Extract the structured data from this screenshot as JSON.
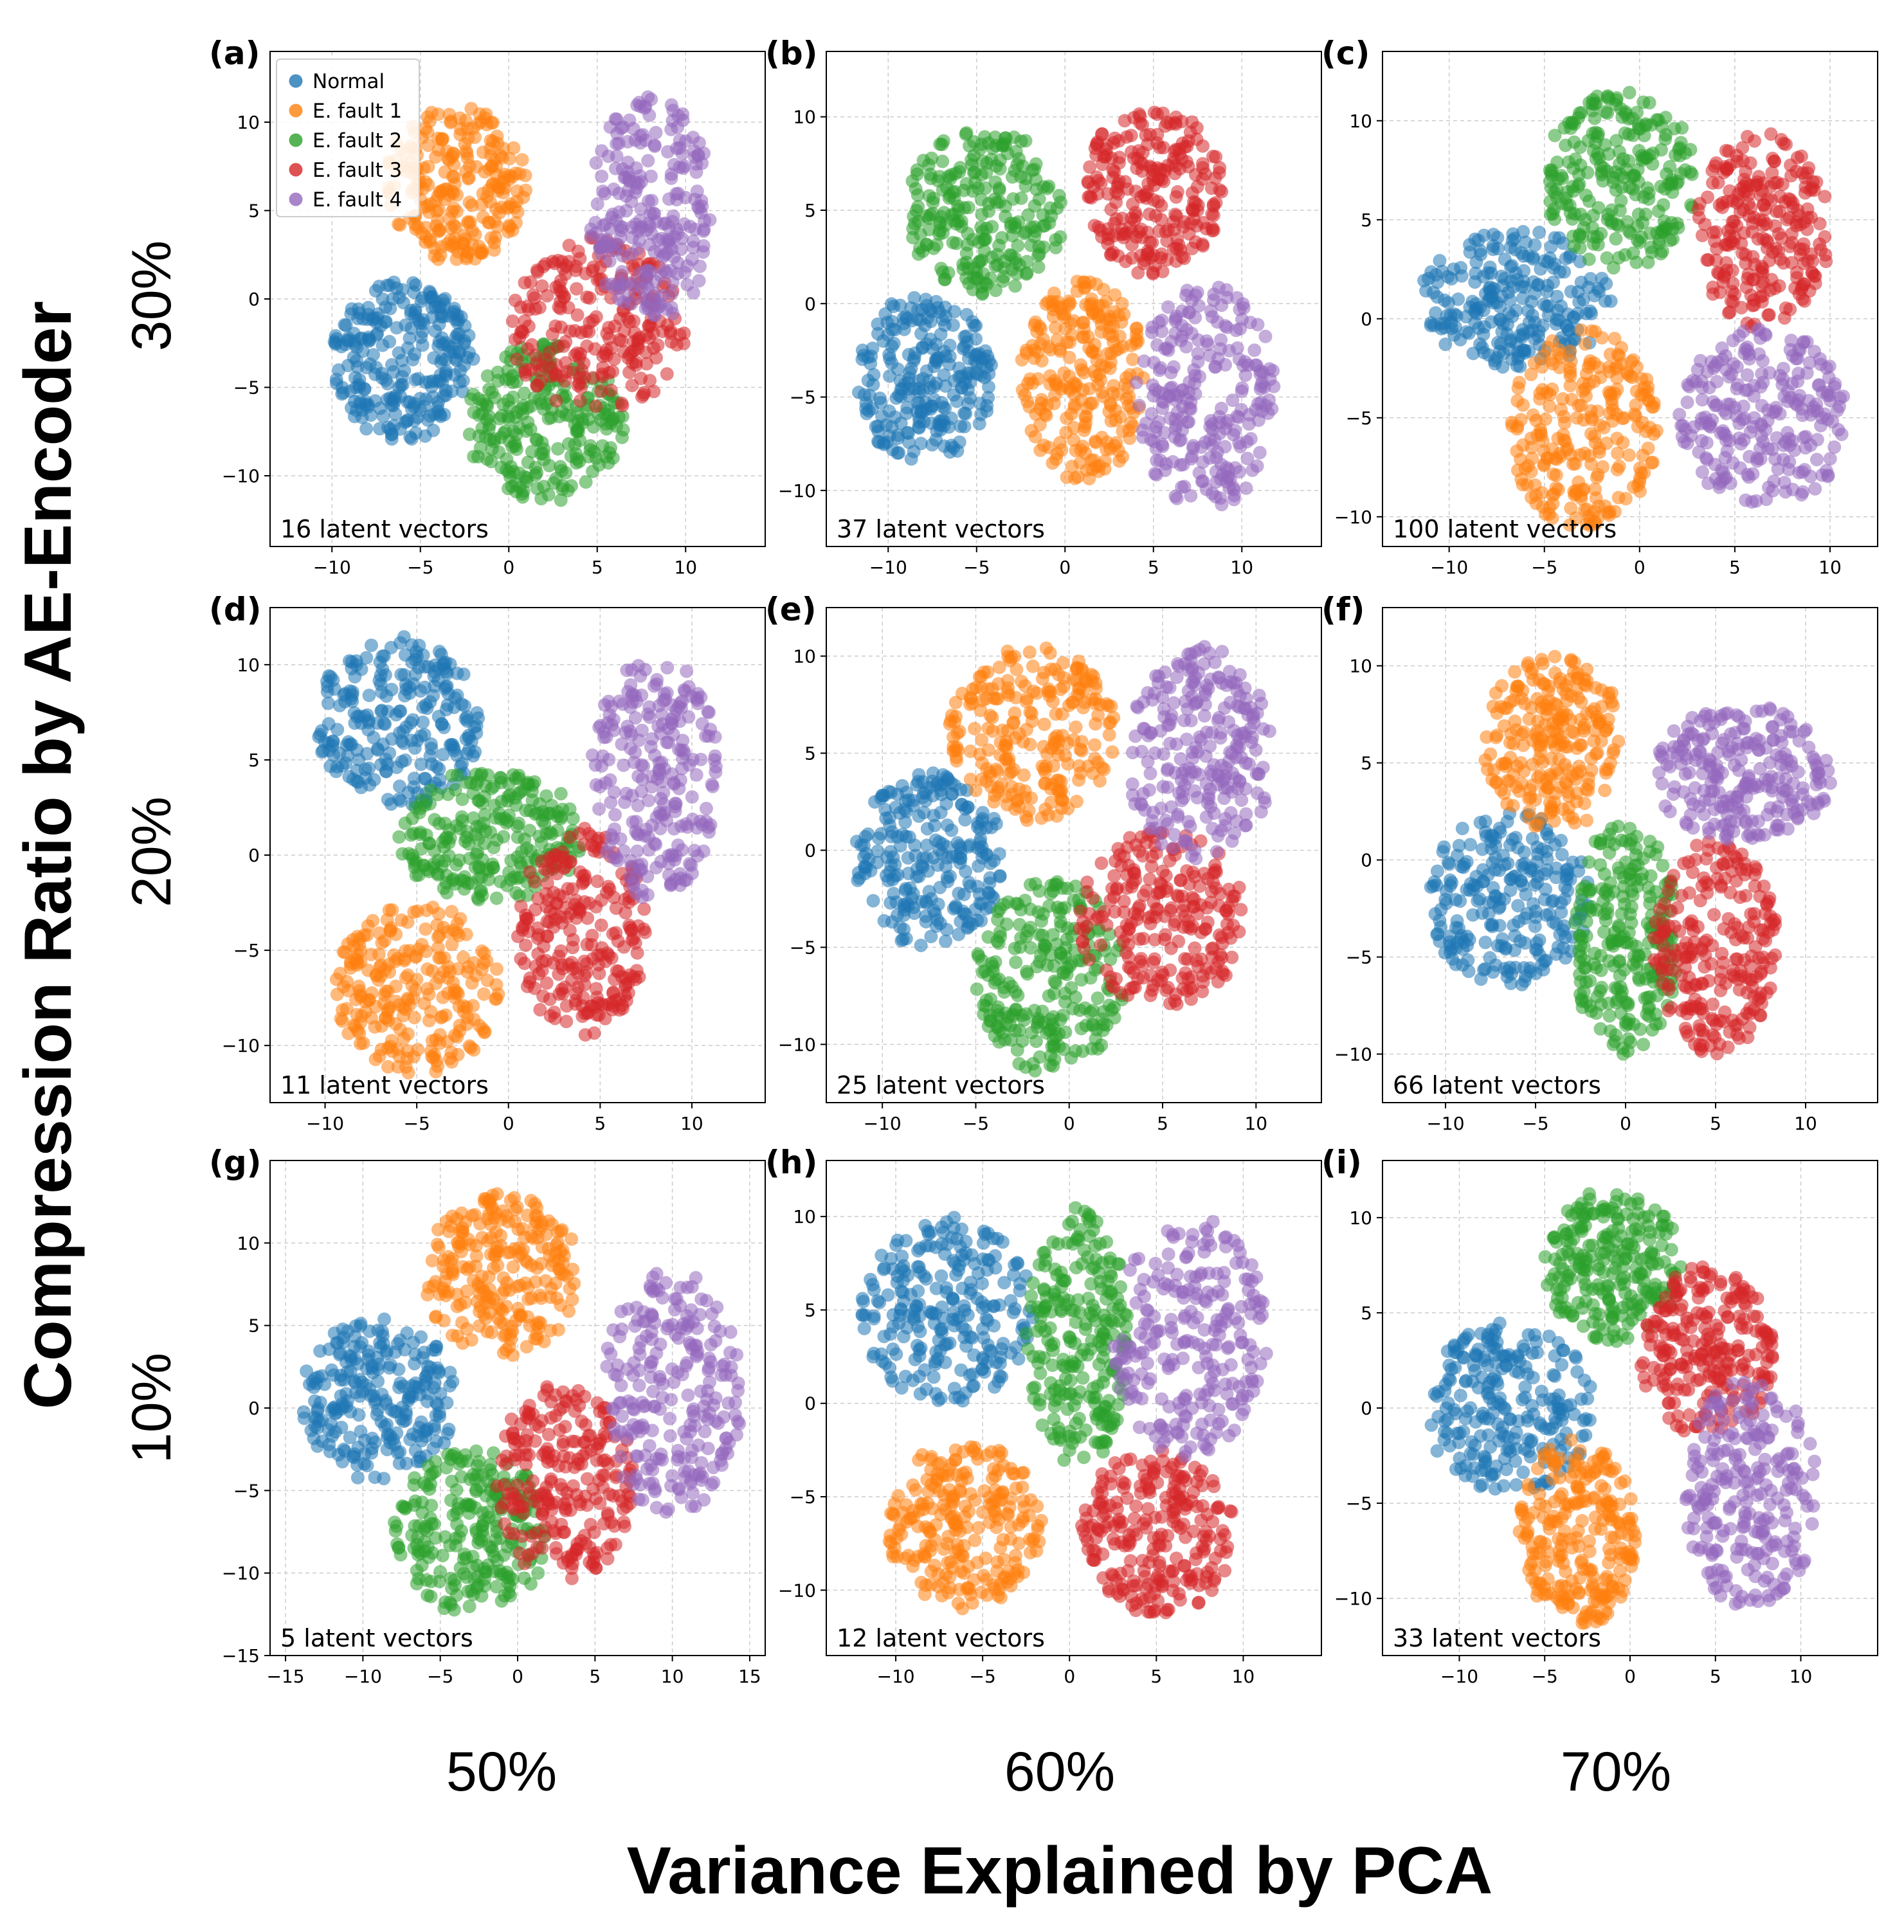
{
  "figure": {
    "ylabel": "Compression Ratio by AE-Encoder",
    "xlabel": "Variance Explained by PCA",
    "row_labels": [
      "30%",
      "20%",
      "10%"
    ],
    "col_labels": [
      "50%",
      "60%",
      "70%"
    ]
  },
  "legend": {
    "entries": [
      "Normal",
      "E. fault 1",
      "E. fault 2",
      "E. fault 3",
      "E. fault 4"
    ]
  },
  "colors": {
    "Normal": "#1f77b4",
    "E. fault 1": "#ff7f0e",
    "E. fault 2": "#2ca02c",
    "E. fault 3": "#d62728",
    "E. fault 4": "#9467bd"
  },
  "chart_data": [
    {
      "id": "a",
      "label": "(a)",
      "type": "scatter",
      "annotation": "16 latent vectors",
      "xlim": [
        -13.5,
        14.5
      ],
      "ylim": [
        -14,
        14
      ],
      "xticks": [
        -10,
        -5,
        0,
        5,
        10
      ],
      "yticks": [
        -10,
        -5,
        0,
        5,
        10
      ],
      "legend": true,
      "clusters": [
        {
          "class": "Normal",
          "center": [
            -6,
            -3.5
          ],
          "spread": [
            4,
            4.5
          ],
          "n": 260
        },
        {
          "class": "E. fault 1",
          "center": [
            -3,
            6.5
          ],
          "spread": [
            4,
            4.5
          ],
          "n": 240
        },
        {
          "class": "E. fault 2",
          "center": [
            2,
            -7
          ],
          "spread": [
            4.5,
            4.5
          ],
          "n": 240
        },
        {
          "class": "E. fault 3",
          "center": [
            5,
            -1.5
          ],
          "spread": [
            5,
            5
          ],
          "n": 240
        },
        {
          "class": "E. fault 4",
          "center": [
            8,
            5
          ],
          "spread": [
            3.5,
            6.5
          ],
          "n": 240
        }
      ]
    },
    {
      "id": "b",
      "label": "(b)",
      "type": "scatter",
      "annotation": "37 latent vectors",
      "xlim": [
        -13.5,
        14.5
      ],
      "ylim": [
        -13,
        13.5
      ],
      "xticks": [
        -10,
        -5,
        0,
        5,
        10
      ],
      "yticks": [
        -10,
        -5,
        0,
        5,
        10
      ],
      "legend": false,
      "clusters": [
        {
          "class": "Normal",
          "center": [
            -8,
            -4
          ],
          "spread": [
            4,
            4.5
          ],
          "n": 240
        },
        {
          "class": "E. fault 1",
          "center": [
            1,
            -4
          ],
          "spread": [
            3.5,
            5.5
          ],
          "n": 240
        },
        {
          "class": "E. fault 2",
          "center": [
            -4.5,
            5
          ],
          "spread": [
            4.5,
            4.5
          ],
          "n": 240
        },
        {
          "class": "E. fault 3",
          "center": [
            5,
            6
          ],
          "spread": [
            4,
            4.5
          ],
          "n": 240
        },
        {
          "class": "E. fault 4",
          "center": [
            8,
            -5
          ],
          "spread": [
            4,
            6
          ],
          "n": 240
        }
      ]
    },
    {
      "id": "c",
      "label": "(c)",
      "type": "scatter",
      "annotation": "100 latent vectors",
      "xlim": [
        -13.5,
        12.5
      ],
      "ylim": [
        -11.5,
        13.5
      ],
      "xticks": [
        -10,
        -5,
        0,
        5,
        10
      ],
      "yticks": [
        -10,
        -5,
        0,
        5,
        10
      ],
      "legend": false,
      "clusters": [
        {
          "class": "Normal",
          "center": [
            -6.5,
            1
          ],
          "spread": [
            5,
            3.5
          ],
          "n": 240
        },
        {
          "class": "E. fault 1",
          "center": [
            -3,
            -5.5
          ],
          "spread": [
            4,
            5
          ],
          "n": 240
        },
        {
          "class": "E. fault 2",
          "center": [
            -1,
            7
          ],
          "spread": [
            4,
            4.5
          ],
          "n": 240
        },
        {
          "class": "E. fault 3",
          "center": [
            6.5,
            4.5
          ],
          "spread": [
            3.5,
            5
          ],
          "n": 240
        },
        {
          "class": "E. fault 4",
          "center": [
            6.5,
            -5
          ],
          "spread": [
            4.5,
            4.5
          ],
          "n": 240
        }
      ]
    },
    {
      "id": "d",
      "label": "(d)",
      "type": "scatter",
      "annotation": "11 latent vectors",
      "xlim": [
        -13,
        14
      ],
      "ylim": [
        -13,
        13
      ],
      "xticks": [
        -10,
        -5,
        0,
        5,
        10
      ],
      "yticks": [
        -10,
        -5,
        0,
        5,
        10
      ],
      "legend": false,
      "clusters": [
        {
          "class": "Normal",
          "center": [
            -6,
            7
          ],
          "spread": [
            4.5,
            4.5
          ],
          "n": 240
        },
        {
          "class": "E. fault 1",
          "center": [
            -5,
            -7
          ],
          "spread": [
            4.5,
            4.5
          ],
          "n": 240
        },
        {
          "class": "E. fault 2",
          "center": [
            -1,
            1
          ],
          "spread": [
            5,
            3.5
          ],
          "n": 240
        },
        {
          "class": "E. fault 3",
          "center": [
            4,
            -4
          ],
          "spread": [
            3.5,
            5.5
          ],
          "n": 240
        },
        {
          "class": "E. fault 4",
          "center": [
            8,
            4
          ],
          "spread": [
            3.5,
            6.5
          ],
          "n": 240
        }
      ]
    },
    {
      "id": "e",
      "label": "(e)",
      "type": "scatter",
      "annotation": "25 latent vectors",
      "xlim": [
        -13,
        13.5
      ],
      "ylim": [
        -13,
        12.5
      ],
      "xticks": [
        -10,
        -5,
        0,
        5,
        10
      ],
      "yticks": [
        -10,
        -5,
        0,
        5,
        10
      ],
      "legend": false,
      "clusters": [
        {
          "class": "Normal",
          "center": [
            -7.5,
            -0.5
          ],
          "spread": [
            4,
            4.5
          ],
          "n": 240
        },
        {
          "class": "E. fault 1",
          "center": [
            -2,
            6
          ],
          "spread": [
            4.5,
            4.5
          ],
          "n": 240
        },
        {
          "class": "E. fault 2",
          "center": [
            -1,
            -6.5
          ],
          "spread": [
            4,
            5
          ],
          "n": 240
        },
        {
          "class": "E. fault 3",
          "center": [
            5,
            -3.5
          ],
          "spread": [
            4.5,
            4.5
          ],
          "n": 240
        },
        {
          "class": "E. fault 4",
          "center": [
            7,
            5
          ],
          "spread": [
            4,
            5.5
          ],
          "n": 240
        }
      ]
    },
    {
      "id": "f",
      "label": "(f)",
      "type": "scatter",
      "annotation": "66 latent vectors",
      "xlim": [
        -13.5,
        14
      ],
      "ylim": [
        -12.5,
        13
      ],
      "xticks": [
        -10,
        -5,
        0,
        5,
        10
      ],
      "yticks": [
        -10,
        -5,
        0,
        5,
        10
      ],
      "legend": false,
      "clusters": [
        {
          "class": "Normal",
          "center": [
            -6.5,
            -2
          ],
          "spread": [
            4.5,
            4.5
          ],
          "n": 240
        },
        {
          "class": "E. fault 1",
          "center": [
            -4,
            6
          ],
          "spread": [
            4,
            4.5
          ],
          "n": 240
        },
        {
          "class": "E. fault 2",
          "center": [
            0,
            -4
          ],
          "spread": [
            3,
            6
          ],
          "n": 240
        },
        {
          "class": "E. fault 3",
          "center": [
            5,
            -4.5
          ],
          "spread": [
            3.5,
            5.5
          ],
          "n": 240
        },
        {
          "class": "E. fault 4",
          "center": [
            6.5,
            4.5
          ],
          "spread": [
            5,
            3.5
          ],
          "n": 240
        }
      ]
    },
    {
      "id": "g",
      "label": "(g)",
      "type": "scatter",
      "annotation": "5 latent vectors",
      "xlim": [
        -16,
        16
      ],
      "ylim": [
        -15,
        15
      ],
      "xticks": [
        -15,
        -10,
        -5,
        0,
        5,
        10,
        15
      ],
      "yticks": [
        -15,
        -10,
        -5,
        0,
        5,
        10
      ],
      "legend": false,
      "clusters": [
        {
          "class": "Normal",
          "center": [
            -9,
            0.5
          ],
          "spread": [
            5,
            5
          ],
          "n": 240
        },
        {
          "class": "E. fault 1",
          "center": [
            -1,
            8
          ],
          "spread": [
            5,
            5
          ],
          "n": 240
        },
        {
          "class": "E. fault 2",
          "center": [
            -3,
            -7.5
          ],
          "spread": [
            5,
            5
          ],
          "n": 240
        },
        {
          "class": "E. fault 3",
          "center": [
            3,
            -4.5
          ],
          "spread": [
            4.5,
            6
          ],
          "n": 240
        },
        {
          "class": "E. fault 4",
          "center": [
            10,
            1
          ],
          "spread": [
            4.5,
            7.5
          ],
          "n": 240
        }
      ]
    },
    {
      "id": "h",
      "label": "(h)",
      "type": "scatter",
      "annotation": "12 latent vectors",
      "xlim": [
        -14,
        14.5
      ],
      "ylim": [
        -13.5,
        13
      ],
      "xticks": [
        -10,
        -5,
        0,
        5,
        10
      ],
      "yticks": [
        -10,
        -5,
        0,
        5,
        10
      ],
      "legend": false,
      "clusters": [
        {
          "class": "Normal",
          "center": [
            -7,
            5
          ],
          "spread": [
            5,
            5
          ],
          "n": 240
        },
        {
          "class": "E. fault 1",
          "center": [
            -6,
            -6.5
          ],
          "spread": [
            4.5,
            4.5
          ],
          "n": 240
        },
        {
          "class": "E. fault 2",
          "center": [
            0.5,
            3.5
          ],
          "spread": [
            3,
            7
          ],
          "n": 240
        },
        {
          "class": "E. fault 3",
          "center": [
            5,
            -7
          ],
          "spread": [
            4.5,
            4.5
          ],
          "n": 240
        },
        {
          "class": "E. fault 4",
          "center": [
            7,
            3.5
          ],
          "spread": [
            4.5,
            6.5
          ],
          "n": 240
        }
      ]
    },
    {
      "id": "i",
      "label": "(i)",
      "type": "scatter",
      "annotation": "33 latent vectors",
      "xlim": [
        -14.5,
        14.5
      ],
      "ylim": [
        -13,
        13
      ],
      "xticks": [
        -10,
        -5,
        0,
        5,
        10
      ],
      "yticks": [
        -10,
        -5,
        0,
        5,
        10
      ],
      "legend": false,
      "clusters": [
        {
          "class": "Normal",
          "center": [
            -7,
            0
          ],
          "spread": [
            5,
            4.5
          ],
          "n": 240
        },
        {
          "class": "E. fault 1",
          "center": [
            -3,
            -6.5
          ],
          "spread": [
            3.5,
            5
          ],
          "n": 240
        },
        {
          "class": "E. fault 2",
          "center": [
            -1,
            7.5
          ],
          "spread": [
            4,
            4
          ],
          "n": 240
        },
        {
          "class": "E. fault 3",
          "center": [
            4.5,
            3
          ],
          "spread": [
            4,
            4.5
          ],
          "n": 240
        },
        {
          "class": "E. fault 4",
          "center": [
            7,
            -4.5
          ],
          "spread": [
            4,
            6
          ],
          "n": 240
        }
      ]
    }
  ]
}
